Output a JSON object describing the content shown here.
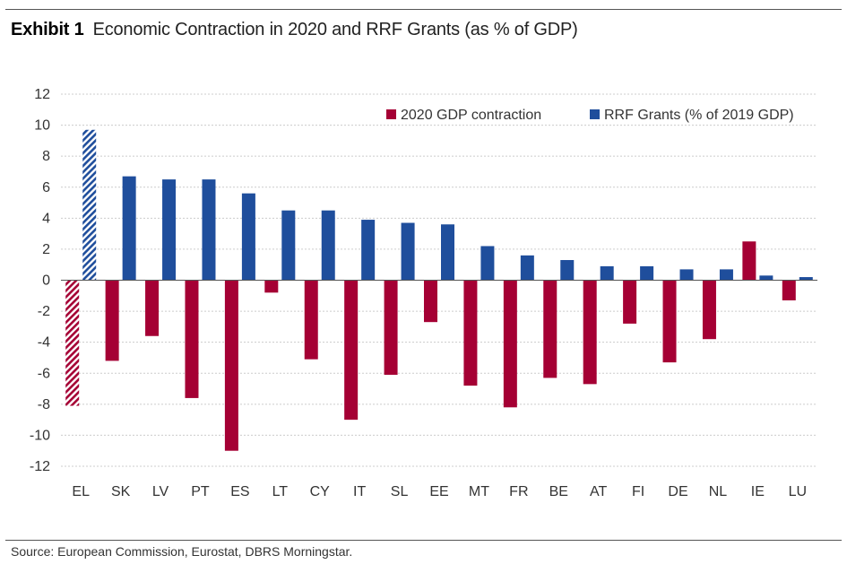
{
  "header": {
    "exhibit_label": "Exhibit 1",
    "title": "Economic Contraction in 2020 and RRF Grants (as % of GDP)"
  },
  "footer": {
    "source": "Source: European Commission, Eurostat, DBRS Morningstar."
  },
  "colors": {
    "contraction": "#a50034",
    "grants": "#1f4e9c",
    "grid": "#cccccc"
  },
  "chart_data": {
    "type": "bar",
    "title": "Economic Contraction in 2020 and RRF Grants (as % of GDP)",
    "xlabel": "",
    "ylabel": "",
    "ylim": [
      -12,
      12
    ],
    "yticks": [
      12,
      10,
      8,
      6,
      4,
      2,
      0,
      -2,
      -4,
      -6,
      -8,
      -10,
      -12
    ],
    "grid": true,
    "legend_position": "top-right",
    "categories": [
      "EL",
      "SK",
      "LV",
      "PT",
      "ES",
      "LT",
      "CY",
      "IT",
      "SL",
      "EE",
      "MT",
      "FR",
      "BE",
      "AT",
      "FI",
      "DE",
      "NL",
      "IE",
      "LU"
    ],
    "hatched_categories": [
      "EL"
    ],
    "series": [
      {
        "name": "2020 GDP contraction",
        "values": [
          -8.1,
          -5.2,
          -3.6,
          -7.6,
          -11.0,
          -0.8,
          -5.1,
          -9.0,
          -6.1,
          -2.7,
          -6.8,
          -8.2,
          -6.3,
          -6.7,
          -2.8,
          -5.3,
          -3.8,
          2.5,
          -1.3
        ]
      },
      {
        "name": "RRF Grants (% of 2019 GDP)",
        "values": [
          9.7,
          6.7,
          6.5,
          6.5,
          5.6,
          4.5,
          4.5,
          3.9,
          3.7,
          3.6,
          2.2,
          1.6,
          1.3,
          0.9,
          0.9,
          0.7,
          0.7,
          0.3,
          0.2
        ]
      }
    ]
  }
}
